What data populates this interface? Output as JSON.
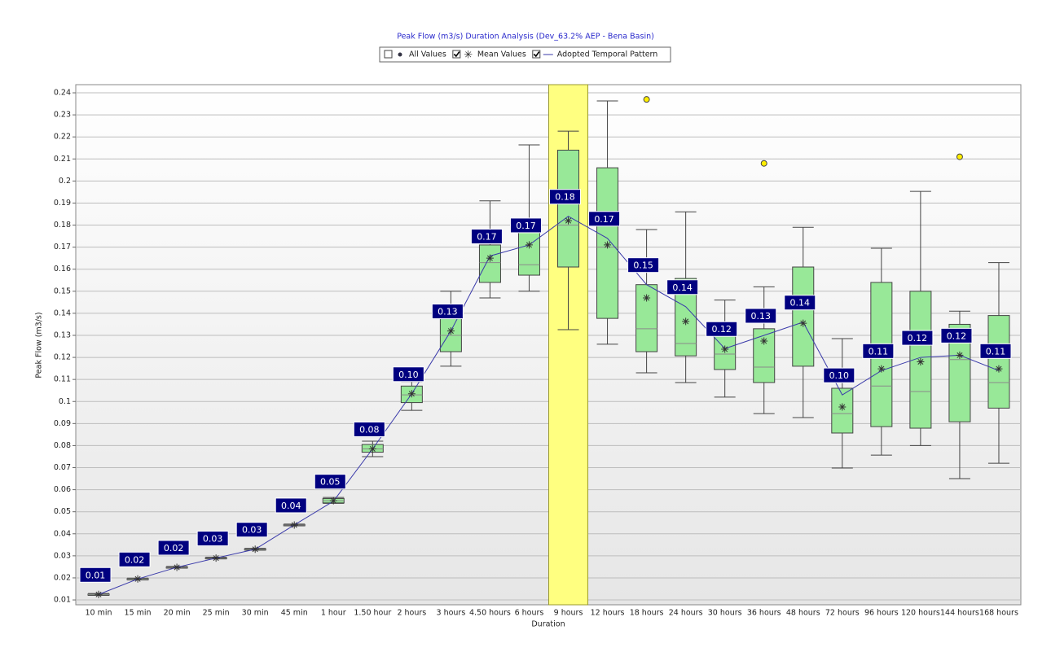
{
  "chart_data": {
    "type": "box",
    "title": "Peak Flow (m3/s) Duration Analysis (Dev_63.2% AEP - Bena Basin)",
    "x_label": "Duration",
    "y_label": "Peak Flow (m3/s)",
    "legend": [
      {
        "name": "All Values",
        "checked": false
      },
      {
        "name": "Mean Values",
        "checked": true
      },
      {
        "name": "Adopted Temporal Pattern",
        "checked": true
      }
    ],
    "categories": [
      "10 min",
      "15 min",
      "20 min",
      "25 min",
      "30 min",
      "45 min",
      "1 hour",
      "1.50 hour",
      "2 hours",
      "3 hours",
      "4.50 hours",
      "6 hours",
      "9 hours",
      "12 hours",
      "18 hours",
      "24 hours",
      "30 hours",
      "36 hours",
      "48 hours",
      "72 hours",
      "96 hours",
      "120 hours",
      "144 hours",
      "168 hours"
    ],
    "highlight": "9 hours",
    "whisker_low": [
      0.0121,
      0.0191,
      0.0244,
      0.0286,
      0.0326,
      0.0436,
      0.0538,
      0.075,
      0.096,
      0.116,
      0.147,
      0.15,
      0.1326,
      0.126,
      0.113,
      0.1086,
      0.102,
      0.0945,
      0.0927,
      0.0698,
      0.0757,
      0.08,
      0.065,
      0.072
    ],
    "q1": [
      0.0123,
      0.0193,
      0.0246,
      0.0288,
      0.0328,
      0.0438,
      0.054,
      0.077,
      0.0995,
      0.1226,
      0.154,
      0.1573,
      0.161,
      0.1377,
      0.1226,
      0.1207,
      0.1145,
      0.1086,
      0.116,
      0.0857,
      0.0886,
      0.0879,
      0.0908,
      0.097
    ],
    "median": [
      0.0125,
      0.0195,
      0.0248,
      0.029,
      0.033,
      0.044,
      0.055,
      0.0785,
      0.103,
      0.13,
      0.163,
      0.162,
      0.18,
      0.17,
      0.133,
      0.1263,
      0.1215,
      0.1156,
      0.142,
      0.0945,
      0.107,
      0.1045,
      0.119,
      0.1086
    ],
    "q3": [
      0.0127,
      0.0197,
      0.025,
      0.0292,
      0.0332,
      0.0442,
      0.056,
      0.0805,
      0.107,
      0.1436,
      0.171,
      0.1769,
      0.214,
      0.206,
      0.153,
      0.1558,
      0.135,
      0.133,
      0.161,
      0.106,
      0.154,
      0.15,
      0.135,
      0.139
    ],
    "whisker_high": [
      0.0129,
      0.0199,
      0.0252,
      0.0294,
      0.0334,
      0.0444,
      0.0565,
      0.082,
      0.109,
      0.15,
      0.191,
      0.2164,
      0.2226,
      0.2363,
      0.178,
      0.186,
      0.146,
      0.152,
      0.179,
      0.1285,
      0.1695,
      0.1953,
      0.141,
      0.163
    ],
    "mean": [
      0.0125,
      0.0195,
      0.0248,
      0.029,
      0.033,
      0.044,
      0.055,
      0.0785,
      0.1035,
      0.132,
      0.165,
      0.171,
      0.182,
      0.171,
      0.147,
      0.1363,
      0.1237,
      0.1274,
      0.1355,
      0.0975,
      0.1148,
      0.118,
      0.121,
      0.1148
    ],
    "outliers": [
      {
        "category": "18 hours",
        "value": 0.237
      },
      {
        "category": "36 hours",
        "value": 0.208
      },
      {
        "category": "144 hours",
        "value": 0.211
      }
    ],
    "pattern": {
      "name": "Adopted Temporal Pattern",
      "color": "#3a3aaa",
      "values": [
        0.0125,
        0.0195,
        0.0248,
        0.029,
        0.033,
        0.044,
        0.0548,
        0.0785,
        0.1035,
        0.132,
        0.166,
        0.171,
        0.184,
        0.174,
        0.153,
        0.143,
        0.124,
        0.13,
        0.136,
        0.103,
        0.114,
        0.12,
        0.121,
        0.114
      ],
      "value_labels": [
        "0.01",
        "0.02",
        "0.02",
        "0.03",
        "0.03",
        "0.04",
        "0.05",
        "0.08",
        "0.10",
        "0.13",
        "0.17",
        "0.17",
        "0.18",
        "0.17",
        "0.15",
        "0.14",
        "0.12",
        "0.13",
        "0.14",
        "0.10",
        "0.11",
        "0.12",
        "0.12",
        "0.11"
      ]
    },
    "box_color": "#98e898",
    "highlight_color": "#ffff80",
    "ylim": [
      0.0078,
      0.2437
    ],
    "yticks": [
      0.01,
      0.02,
      0.03,
      0.04,
      0.05,
      0.06,
      0.07,
      0.08,
      0.09,
      0.1,
      0.11,
      0.12,
      0.13,
      0.14,
      0.15,
      0.16,
      0.17,
      0.18,
      0.19,
      0.2,
      0.21,
      0.22,
      0.23,
      0.24
    ],
    "grid": true
  }
}
